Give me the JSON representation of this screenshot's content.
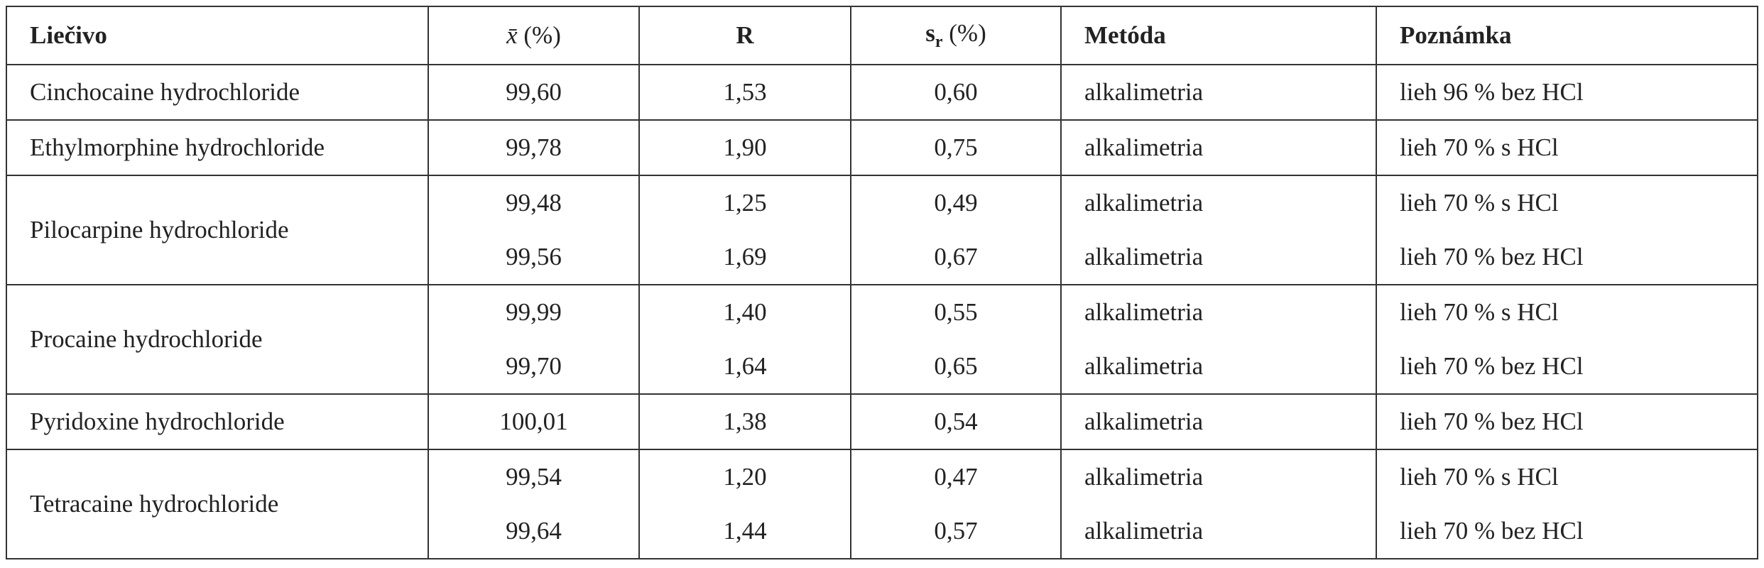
{
  "table": {
    "header": [
      "Liečivo",
      {
        "base": "x̄",
        "rest": " (%)"
      },
      "R",
      {
        "base": "s",
        "sub": "r",
        "rest": " (%)"
      },
      "Metóda",
      "Poznámka"
    ],
    "groups": [
      {
        "name": "Cinchocaine hydrochloride",
        "rows": [
          [
            "99,60",
            "1,53",
            "0,60",
            "alkalimetria",
            "lieh 96 % bez HCl"
          ]
        ]
      },
      {
        "name": "Ethylmorphine hydrochloride",
        "rows": [
          [
            "99,78",
            "1,90",
            "0,75",
            "alkalimetria",
            "lieh 70 % s HCl"
          ]
        ]
      },
      {
        "name": "Pilocarpine hydrochloride",
        "rows": [
          [
            "99,48",
            "1,25",
            "0,49",
            "alkalimetria",
            "lieh 70 % s HCl"
          ],
          [
            "99,56",
            "1,69",
            "0,67",
            "alkalimetria",
            "lieh 70 % bez HCl"
          ]
        ]
      },
      {
        "name": "Procaine hydrochloride",
        "rows": [
          [
            "99,99",
            "1,40",
            "0,55",
            "alkalimetria",
            "lieh 70 % s HCl"
          ],
          [
            "99,70",
            "1,64",
            "0,65",
            "alkalimetria",
            "lieh 70 % bez HCl"
          ]
        ]
      },
      {
        "name": "Pyridoxine hydrochloride",
        "rows": [
          [
            "100,01",
            "1,38",
            "0,54",
            "alkalimetria",
            "lieh 70 % bez HCl"
          ]
        ]
      },
      {
        "name": "Tetracaine hydrochloride",
        "rows": [
          [
            "99,54",
            "1,20",
            "0,47",
            "alkalimetria",
            "lieh 70 % s HCl"
          ],
          [
            "99,64",
            "1,44",
            "0,57",
            "alkalimetria",
            "lieh 70 % bez HCl"
          ]
        ]
      }
    ]
  }
}
